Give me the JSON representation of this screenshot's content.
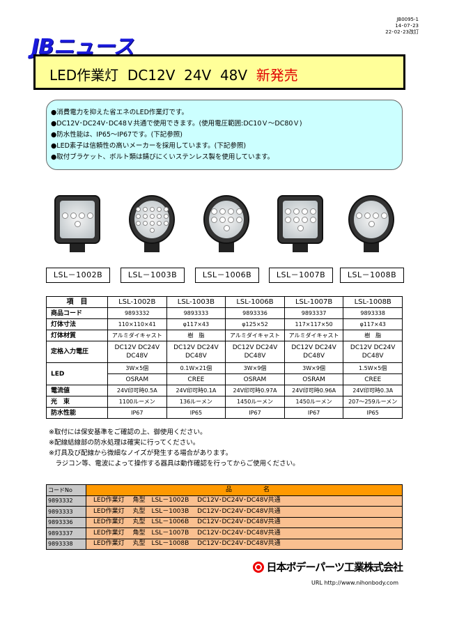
{
  "doc_info": [
    "JB0095-1",
    "14･07･23",
    "22･02･23改訂"
  ],
  "logo": "JBニュース",
  "title": {
    "main": "LED作業灯  DC12V  24V  48V  ",
    "highlight": "新発売"
  },
  "features": [
    "●消費電力を抑えた省エネのLED作業灯です。",
    "●DC12V･DC24V･DC48Ｖ共通で使用できます。(使用電圧範囲:DC10Ｖ～DC80Ｖ)",
    "●防水性能は、IP65～IP67です。(下記参照)",
    "●LED素子は信頼性の高いメーカーを採用しています。(下記参照)",
    "●取付ブラケット、ボルト類は錆びにくいステンレス製を使用しています。"
  ],
  "products": [
    {
      "label": "LSL－1002B",
      "shape": "square",
      "leds": 5
    },
    {
      "label": "LSL－1003B",
      "shape": "round",
      "leds": 21
    },
    {
      "label": "LSL－1006B",
      "shape": "round",
      "leds": 9
    },
    {
      "label": "LSL－1007B",
      "shape": "square",
      "leds": 9
    },
    {
      "label": "LSL－1008B",
      "shape": "round",
      "leds": 5
    }
  ],
  "spec": {
    "header": [
      "項　目",
      "LSL-1002B",
      "LSL-1003B",
      "LSL-1006B",
      "LSL-1007B",
      "LSL-1008B"
    ],
    "code": [
      "商品コード",
      "9893332",
      "9893333",
      "9893336",
      "9893337",
      "9893338"
    ],
    "size": [
      "灯体寸法",
      "110×110×41",
      "φ117×43",
      "φ125×52",
      "117×117×50",
      "φ117×43"
    ],
    "material": [
      "灯体材質",
      "アルミダイキャスト",
      "樹　脂",
      "アルミダイキャスト",
      "アルミダイキャスト",
      "樹　脂"
    ],
    "voltage": [
      "定格入力電圧",
      "DC12V DC24V DC48V",
      "DC12V DC24V DC48V",
      "DC12V DC24V DC48V",
      "DC12V DC24V DC48V",
      "DC12V DC24V DC48V"
    ],
    "led_count": [
      "LED",
      "3W×5個",
      "0.1W×21個",
      "3W×9個",
      "3W×9個",
      "1.5W×5個"
    ],
    "led_maker": [
      "OSRAM",
      "CREE",
      "OSRAM",
      "OSRAM",
      "CREE"
    ],
    "current": [
      "電流値",
      "24V印可時0.5A",
      "24V印可時0.1A",
      "24V印可時0.97A",
      "24V印可時0.96A",
      "24V印可時0.3A"
    ],
    "lumen": [
      "光　束",
      "1100ルーメン",
      "136ルーメン",
      "1450ルーメン",
      "1450ルーメン",
      "207～259ルーメン"
    ],
    "ip": [
      "防水性能",
      "IP67",
      "IP65",
      "IP67",
      "IP67",
      "IP65"
    ]
  },
  "notes": [
    "※取付には保安基準をご確認の上、御使用ください。",
    "※配線結線部の防水処理は確実に行ってください。",
    "※灯具及び配線から微細なノイズが発生する場合があります。",
    "　ラジコン等、電波によって操作する器具は動作確認を行ってからご使用ください。"
  ],
  "codes": {
    "header": [
      "コードNo",
      "品　　　　　名"
    ],
    "rows": [
      [
        "9893332",
        "LED作業灯　 角型　LSL－1002B　 DC12V･DC24V･DC48V共通"
      ],
      [
        "9893333",
        "LED作業灯　 丸型　LSL－1003B　 DC12V･DC24V･DC48V共通"
      ],
      [
        "9893336",
        "LED作業灯　 丸型　LSL－1006B　 DC12V･DC24V･DC48V共通"
      ],
      [
        "9893337",
        "LED作業灯　 角型　LSL－1007B　 DC12V･DC24V･DC48V共通"
      ],
      [
        "9893338",
        "LED作業灯　 丸型　LSL－1008B　 DC12V･DC24V･DC48V共通"
      ]
    ]
  },
  "company": "日本ボデーパーツ工業株式会社",
  "url": "URL http://www.nihonbody.com",
  "colors": {
    "logo": "#1a1adc",
    "title_bg": "#ffff99",
    "info_bg": "#ccffff",
    "header_orange": "#ff9900",
    "row_peach": "#fac090",
    "accent_red": "#e00000"
  }
}
